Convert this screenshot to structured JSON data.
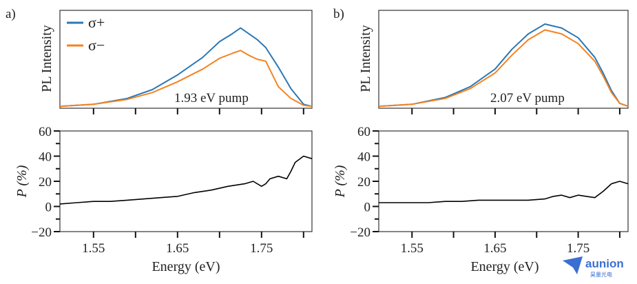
{
  "colors": {
    "sigma_plus": "#2b77b5",
    "sigma_minus": "#f5821f",
    "polarization": "#000000",
    "watermark": "#3b6fd1"
  },
  "watermark": {
    "brand": "aunion",
    "sub": "昊量光电"
  },
  "chart_data": [
    {
      "panel": "a)",
      "type": "line",
      "annotation": "1.93 eV pump",
      "top": {
        "ylabel": "PL Intensity",
        "legend": [
          "σ+",
          "σ−"
        ],
        "legend_position": "top-left",
        "xlim": [
          1.51,
          1.81
        ],
        "ylim": [
          0,
          1.0
        ],
        "series": [
          {
            "name": "σ+",
            "x": [
              1.51,
              1.55,
              1.59,
              1.62,
              1.65,
              1.68,
              1.7,
              1.715,
              1.725,
              1.735,
              1.745,
              1.755,
              1.77,
              1.785,
              1.8,
              1.81
            ],
            "y": [
              0.02,
              0.04,
              0.1,
              0.19,
              0.34,
              0.52,
              0.68,
              0.76,
              0.82,
              0.76,
              0.7,
              0.62,
              0.42,
              0.2,
              0.04,
              0.02
            ]
          },
          {
            "name": "σ−",
            "x": [
              1.51,
              1.55,
              1.59,
              1.62,
              1.65,
              1.68,
              1.7,
              1.715,
              1.725,
              1.735,
              1.745,
              1.755,
              1.77,
              1.785,
              1.8,
              1.81
            ],
            "y": [
              0.02,
              0.04,
              0.09,
              0.16,
              0.27,
              0.4,
              0.51,
              0.56,
              0.59,
              0.54,
              0.5,
              0.48,
              0.22,
              0.1,
              0.03,
              0.02
            ]
          }
        ]
      },
      "bottom": {
        "ylabel": "P (%)",
        "xlabel": "Energy (eV)",
        "xlim": [
          1.51,
          1.81
        ],
        "ylim": [
          -20,
          60
        ],
        "xticks": [
          "1.55",
          "1.65",
          "1.75"
        ],
        "yticks": [
          "60",
          "40",
          "20",
          "0",
          "−20"
        ],
        "x": [
          1.51,
          1.53,
          1.55,
          1.57,
          1.59,
          1.61,
          1.63,
          1.65,
          1.67,
          1.69,
          1.71,
          1.73,
          1.74,
          1.75,
          1.755,
          1.76,
          1.77,
          1.78,
          1.785,
          1.79,
          1.8,
          1.81
        ],
        "y": [
          2,
          3,
          4,
          4,
          5,
          6,
          7,
          8,
          11,
          13,
          16,
          18,
          20,
          16,
          18,
          22,
          24,
          22,
          28,
          35,
          40,
          38
        ]
      }
    },
    {
      "panel": "b)",
      "type": "line",
      "annotation": "2.07 eV pump",
      "top": {
        "ylabel": "PL Intensity",
        "xlim": [
          1.51,
          1.81
        ],
        "ylim": [
          0,
          1.0
        ],
        "series": [
          {
            "name": "σ+",
            "x": [
              1.51,
              1.55,
              1.59,
              1.62,
              1.65,
              1.67,
              1.69,
              1.71,
              1.73,
              1.75,
              1.77,
              1.78,
              1.79,
              1.8,
              1.81
            ],
            "y": [
              0.02,
              0.04,
              0.11,
              0.22,
              0.4,
              0.6,
              0.76,
              0.86,
              0.82,
              0.72,
              0.52,
              0.36,
              0.18,
              0.05,
              0.02
            ]
          },
          {
            "name": "σ−",
            "x": [
              1.51,
              1.55,
              1.59,
              1.62,
              1.65,
              1.67,
              1.69,
              1.71,
              1.73,
              1.75,
              1.77,
              1.78,
              1.79,
              1.8,
              1.81
            ],
            "y": [
              0.02,
              0.04,
              0.1,
              0.2,
              0.36,
              0.54,
              0.7,
              0.8,
              0.76,
              0.66,
              0.48,
              0.33,
              0.16,
              0.05,
              0.02
            ]
          }
        ]
      },
      "bottom": {
        "ylabel": "P (%)",
        "xlabel": "Energy (eV)",
        "xlim": [
          1.51,
          1.81
        ],
        "ylim": [
          -20,
          60
        ],
        "xticks": [
          "1.55",
          "1.65",
          "1.75"
        ],
        "yticks": [
          "60",
          "40",
          "20",
          "0",
          "−20"
        ],
        "x": [
          1.51,
          1.53,
          1.55,
          1.57,
          1.59,
          1.61,
          1.63,
          1.65,
          1.67,
          1.69,
          1.71,
          1.72,
          1.73,
          1.74,
          1.75,
          1.76,
          1.77,
          1.78,
          1.79,
          1.8,
          1.81
        ],
        "y": [
          3,
          3,
          3,
          3,
          4,
          4,
          5,
          5,
          5,
          5,
          6,
          8,
          9,
          7,
          9,
          8,
          7,
          12,
          18,
          20,
          18
        ]
      }
    }
  ]
}
